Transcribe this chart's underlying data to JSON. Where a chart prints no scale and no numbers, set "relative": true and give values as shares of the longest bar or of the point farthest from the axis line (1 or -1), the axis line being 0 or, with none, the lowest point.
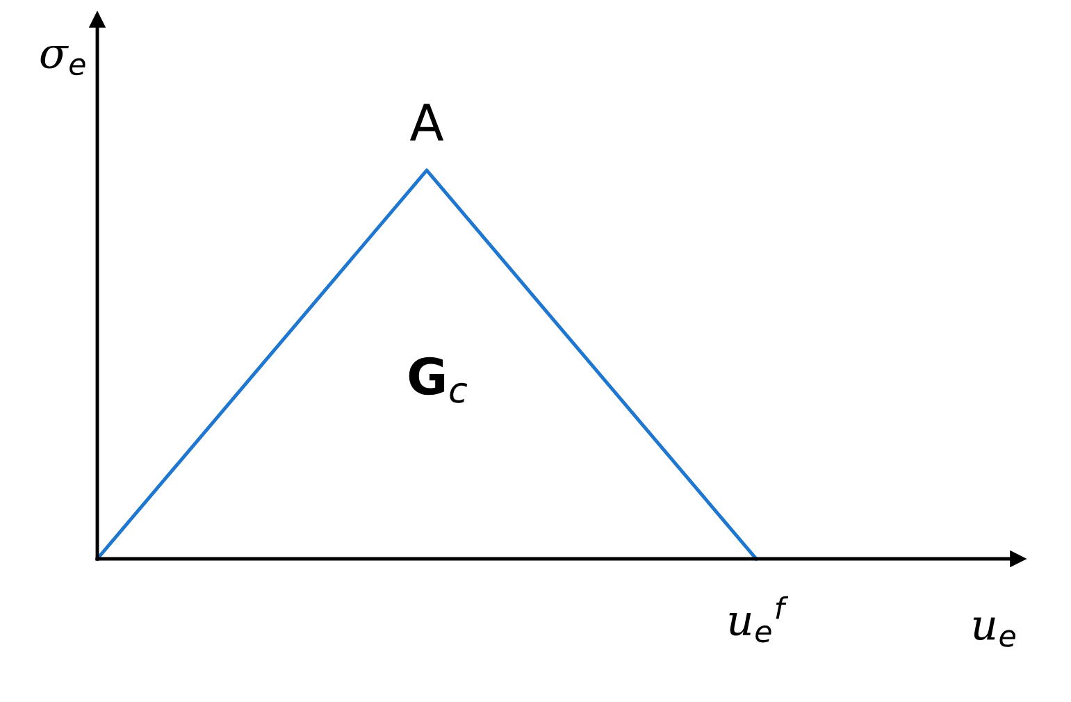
{
  "chart_data": {
    "type": "line",
    "relative": true,
    "xlabel": "u$_{e}$",
    "ylabel": "σ$_{e}$",
    "categories": [
      null,
      null,
      null
    ],
    "series": [
      {
        "color": "#1f77d0",
        "values": [
          0,
          1,
          0
        ]
      }
    ],
    "annotations": [
      {
        "text": "A",
        "y": 1
      },
      "G$_{c}$",
      {
        "text": "u$_{e}$$^{f}$",
        "y": 0
      }
    ],
    "grid": false,
    "legend": false,
    "marker": "none",
    "line_style": "solid"
  }
}
